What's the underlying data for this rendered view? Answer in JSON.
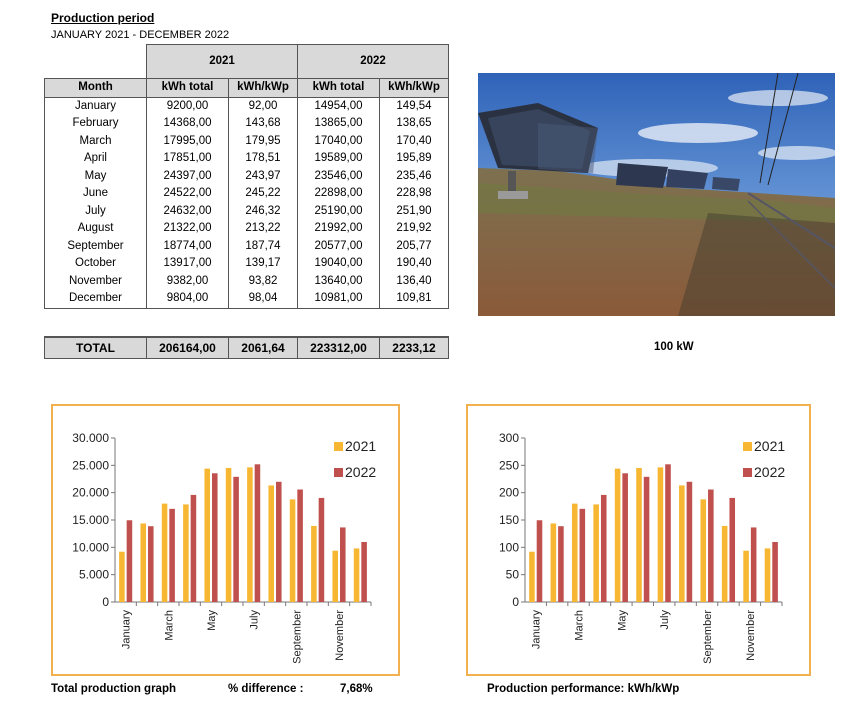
{
  "heading": {
    "title": "Production period",
    "period": "JANUARY 2021 - DECEMBER 2022"
  },
  "table": {
    "years": [
      "2021",
      "2022"
    ],
    "headers": [
      "Month",
      "kWh total",
      "kWh/kWp",
      "kWh total",
      "kWh/kWp"
    ],
    "rows": [
      [
        "January",
        "9200,00",
        "92,00",
        "14954,00",
        "149,54"
      ],
      [
        "February",
        "14368,00",
        "143,68",
        "13865,00",
        "138,65"
      ],
      [
        "March",
        "17995,00",
        "179,95",
        "17040,00",
        "170,40"
      ],
      [
        "April",
        "17851,00",
        "178,51",
        "19589,00",
        "195,89"
      ],
      [
        "May",
        "24397,00",
        "243,97",
        "23546,00",
        "235,46"
      ],
      [
        "June",
        "24522,00",
        "245,22",
        "22898,00",
        "228,98"
      ],
      [
        "July",
        "24632,00",
        "246,32",
        "25190,00",
        "251,90"
      ],
      [
        "August",
        "21322,00",
        "213,22",
        "21992,00",
        "219,92"
      ],
      [
        "September",
        "18774,00",
        "187,74",
        "20577,00",
        "205,77"
      ],
      [
        "October",
        "13917,00",
        "139,17",
        "19040,00",
        "190,40"
      ],
      [
        "November",
        "9382,00",
        "93,82",
        "13640,00",
        "136,40"
      ],
      [
        "December",
        "9804,00",
        "98,04",
        "10981,00",
        "109,81"
      ]
    ],
    "total": [
      "TOTAL",
      "206164,00",
      "2061,64",
      "223312,00",
      "2233,12"
    ]
  },
  "photo": {
    "caption": "100 kW"
  },
  "colors": {
    "y2021": "#f7b733",
    "y2022": "#c0504d",
    "frame": "#f2b04e"
  },
  "footer": {
    "left_label": "Total production  graph",
    "diff_label": "% difference :",
    "diff_value": "7,68%",
    "right_label": "Production performance: kWh/kWp"
  },
  "chart_data": [
    {
      "type": "bar",
      "categories": [
        "January",
        "February",
        "March",
        "April",
        "May",
        "June",
        "July",
        "August",
        "September",
        "October",
        "November",
        "December"
      ],
      "x_tick_labels": [
        "January",
        "",
        "March",
        "",
        "May",
        "",
        "July",
        "",
        "September",
        "",
        "November",
        ""
      ],
      "y_tick_labels": [
        "0",
        "5.000",
        "10.000",
        "15.000",
        "20.000",
        "25.000",
        "30.000"
      ],
      "ylim": [
        0,
        30000
      ],
      "series": [
        {
          "name": "2021",
          "values": [
            9200,
            14368,
            17995,
            17851,
            24397,
            24522,
            24632,
            21322,
            18774,
            13917,
            9382,
            9804
          ]
        },
        {
          "name": "2022",
          "values": [
            14954,
            13865,
            17040,
            19589,
            23546,
            22898,
            25190,
            21992,
            20577,
            19040,
            13640,
            10981
          ]
        }
      ],
      "legend": "top-right",
      "grid": false
    },
    {
      "type": "bar",
      "categories": [
        "January",
        "February",
        "March",
        "April",
        "May",
        "June",
        "July",
        "August",
        "September",
        "October",
        "November",
        "December"
      ],
      "x_tick_labels": [
        "January",
        "",
        "March",
        "",
        "May",
        "",
        "July",
        "",
        "September",
        "",
        "November",
        ""
      ],
      "y_tick_labels": [
        "0",
        "50",
        "100",
        "150",
        "200",
        "250",
        "300"
      ],
      "ylim": [
        0,
        300
      ],
      "series": [
        {
          "name": "2021",
          "values": [
            92.0,
            143.68,
            179.95,
            178.51,
            243.97,
            245.22,
            246.32,
            213.22,
            187.74,
            139.17,
            93.82,
            98.04
          ]
        },
        {
          "name": "2022",
          "values": [
            149.54,
            138.65,
            170.4,
            195.89,
            235.46,
            228.98,
            251.9,
            219.92,
            205.77,
            190.4,
            136.4,
            109.81
          ]
        }
      ],
      "legend": "top-right",
      "grid": false
    }
  ]
}
